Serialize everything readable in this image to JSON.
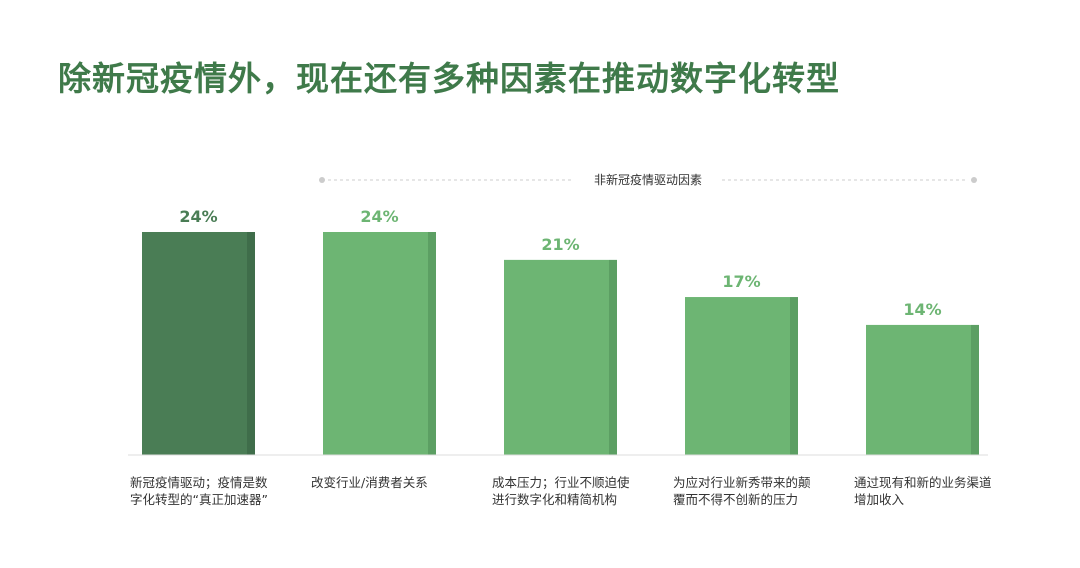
{
  "title": "除新冠疫情外，现在还有多种因素在推动数字化转型",
  "group_label": "非新冠疫情驱动因素",
  "colors": {
    "dark": "#4a7d55",
    "dark_side": "#3f6d4a",
    "light": "#6db573",
    "light_side": "#5c9f63",
    "title": "#3f7a4a"
  },
  "chart_data": {
    "type": "bar",
    "title": "除新冠疫情外，现在还有多种因素在推动数字化转型",
    "categories": [
      "新冠疫情驱动；疫情是数字化转型的“真正加速器”",
      "改变行业/消费者关系",
      "成本压力；行业不顺迫使进行数字化和精简机构",
      "为应对行业新秀带来的颠覆而不得不创新的压力",
      "通过现有和新的业务渠道增加收入"
    ],
    "values": [
      24,
      24,
      21,
      17,
      14
    ],
    "value_labels": [
      "24%",
      "24%",
      "21%",
      "17%",
      "14%"
    ],
    "ylim": [
      0,
      24
    ],
    "grid": false
  }
}
